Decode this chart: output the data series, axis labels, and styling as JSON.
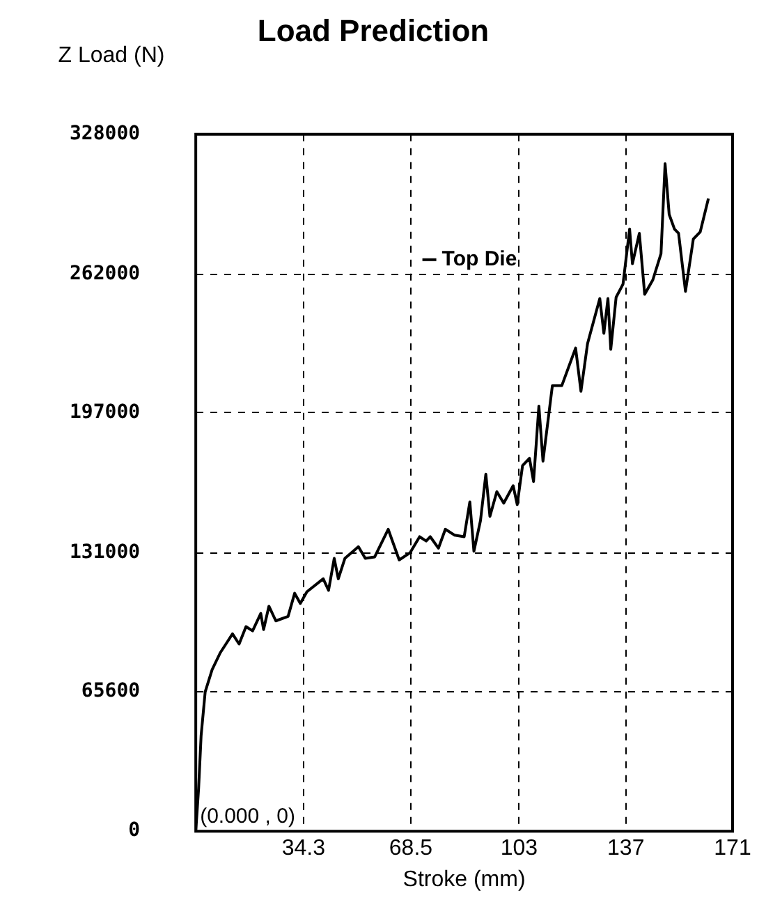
{
  "chart_data": {
    "type": "line",
    "title": "Load Prediction",
    "xlabel": "Stroke (mm)",
    "ylabel": "Z Load (N)",
    "annotations": [
      {
        "text": "(0.000 , 0)",
        "x": 0,
        "y": 0
      }
    ],
    "xlim": [
      0,
      171
    ],
    "xticks": [
      {
        "value": 0,
        "label": null
      },
      34.3,
      68.5,
      103,
      137,
      171
    ],
    "ylim": [
      0,
      328000
    ],
    "yticks": [
      0,
      65600,
      131000,
      197000,
      262000,
      328000
    ],
    "grid": true,
    "legend": "top",
    "line_style": "solid",
    "marker": "none",
    "series": [
      {
        "name": "Top Die",
        "color": "#000000",
        "x": [
          0,
          0.9,
          1.7,
          3.0,
          5.2,
          7.8,
          10,
          11.7,
          13.8,
          16.0,
          18.1,
          20.7,
          21.6,
          23.3,
          25.5,
          29.4,
          31.5,
          33.3,
          35.4,
          40.6,
          42.3,
          44.1,
          45.4,
          47.5,
          51.8,
          54.0,
          57.0,
          61.3,
          64.8,
          68.3,
          71.3,
          73.4,
          74.7,
          77.3,
          79.5,
          82.5,
          85.5,
          87.3,
          88.6,
          90.7,
          92.4,
          93.7,
          95.9,
          98.1,
          101.1,
          102.4,
          104.1,
          106.3,
          107.6,
          109.3,
          110.6,
          113.6,
          116.6,
          121.0,
          122.7,
          124.8,
          128.7,
          130.0,
          131.3,
          132.2,
          133.9,
          136.1,
          138.2,
          139.1,
          141.3,
          143.0,
          145.6,
          148.2,
          149.5,
          150.8,
          152.5,
          153.8,
          156.0,
          158.5,
          160.7,
          163.3
        ],
        "values": [
          0,
          20000,
          45000,
          65600,
          76000,
          84000,
          89000,
          92900,
          88100,
          96300,
          94300,
          102500,
          94900,
          105900,
          99000,
          101100,
          112000,
          107200,
          112700,
          118800,
          113400,
          128400,
          118800,
          128400,
          133900,
          128400,
          129100,
          142100,
          127700,
          131100,
          138600,
          136600,
          138600,
          133200,
          142100,
          139300,
          138600,
          155000,
          131800,
          146200,
          168000,
          148200,
          159800,
          154400,
          162600,
          153700,
          172100,
          175500,
          164600,
          200100,
          174200,
          209700,
          209700,
          227400,
          207000,
          229500,
          250700,
          234300,
          250700,
          226800,
          251300,
          257500,
          283400,
          267100,
          281400,
          252700,
          259500,
          271800,
          314200,
          290300,
          283400,
          281400,
          254100,
          278700,
          282100,
          297800
        ]
      }
    ]
  }
}
